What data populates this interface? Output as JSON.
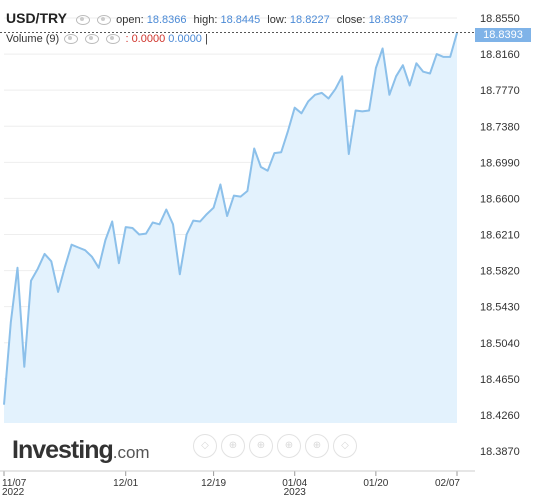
{
  "header": {
    "symbol": "USD/TRY",
    "open_label": "open:",
    "open_value": "18.8366",
    "high_label": "high:",
    "high_value": "18.8445",
    "low_label": "low:",
    "low_value": "18.8227",
    "close_label": "close:",
    "close_value": "18.8397"
  },
  "volume": {
    "label": "Volume (9)",
    "value_red": ": 0.0000",
    "value_blue": "0.0000",
    "separator": "|"
  },
  "logo": {
    "brand": "Investing",
    "suffix": ".com"
  },
  "colors": {
    "line": "#8cc0ea",
    "area": "#e3f2fd",
    "grid": "#eeeeee",
    "last_price_badge": "#7fb3e8",
    "axis_text": "#333333"
  },
  "toolbar_icons": [
    "zoom-in-icon",
    "zoom-out-icon",
    "pan-left-icon",
    "pan-right-icon",
    "reset-zoom-icon",
    "fullscreen-icon"
  ],
  "chart_data": {
    "type": "area",
    "title": "USD/TRY",
    "ylim": [
      18.387,
      18.855
    ],
    "y_ticks": [
      "18.8550",
      "18.8160",
      "18.7770",
      "18.7380",
      "18.6990",
      "18.6600",
      "18.6210",
      "18.5820",
      "18.5430",
      "18.5040",
      "18.4650",
      "18.4260",
      "18.3870"
    ],
    "x_ticks": [
      {
        "label": "11/07",
        "sublabel": "2022",
        "index": 0
      },
      {
        "label": "12/01",
        "index": 18
      },
      {
        "label": "12/19",
        "index": 31
      },
      {
        "label": "01/04",
        "sublabel": "2023",
        "index": 43
      },
      {
        "label": "01/20",
        "index": 55
      },
      {
        "label": "02/07",
        "index": 67
      }
    ],
    "last_price": "18.8393",
    "series": [
      {
        "values": [
          18.437,
          18.526,
          18.585,
          18.478,
          18.571,
          18.584,
          18.6,
          18.592,
          18.559,
          18.586,
          18.61,
          18.607,
          18.604,
          18.597,
          18.585,
          18.615,
          18.635,
          18.59,
          18.629,
          18.628,
          18.621,
          18.622,
          18.634,
          18.632,
          18.648,
          18.632,
          18.578,
          18.621,
          18.636,
          18.635,
          18.643,
          18.65,
          18.675,
          18.641,
          18.663,
          18.662,
          18.668,
          18.714,
          18.694,
          18.69,
          18.709,
          18.71,
          18.733,
          18.758,
          18.752,
          18.765,
          18.772,
          18.774,
          18.768,
          18.778,
          18.792,
          18.708,
          18.755,
          18.754,
          18.755,
          18.801,
          18.822,
          18.772,
          18.792,
          18.804,
          18.782,
          18.806,
          18.797,
          18.795,
          18.816,
          18.813,
          18.813,
          18.839
        ]
      }
    ]
  }
}
